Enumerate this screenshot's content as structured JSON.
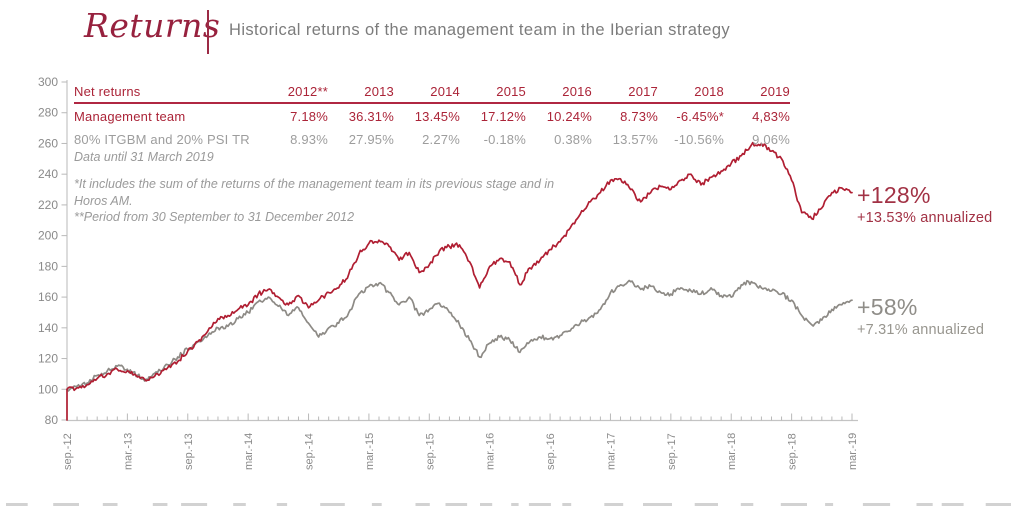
{
  "header": {
    "title": "Returns",
    "subtitle": "Historical returns of the management team in the Iberian strategy"
  },
  "table": {
    "header_label": "Net returns",
    "years": [
      "2012**",
      "2013",
      "2014",
      "2015",
      "2016",
      "2017",
      "2018",
      "2019"
    ],
    "rows": [
      {
        "label": "Management team",
        "values": [
          "7.18%",
          "36.31%",
          "13.45%",
          "17.12%",
          "10.24%",
          "8.73%",
          "-6.45%*",
          "4,83%"
        ]
      },
      {
        "label": "80% ITGBM and 20% PSI TR",
        "values": [
          "8.93%",
          "27.95%",
          "2.27%",
          "-0.18%",
          "0.38%",
          "13.57%",
          "-10.56%",
          "9,06%"
        ]
      }
    ]
  },
  "notes": {
    "data_until": "Data until 31 March 2019",
    "asterisk": "*It includes the sum of the returns of the management team in its previous stage and in Horos AM.",
    "double_asterisk": "**Period from 30 September to 31 December 2012"
  },
  "annotations": {
    "team": {
      "total": "+128%",
      "annualized": "+13.53% annualized"
    },
    "benchmark": {
      "total": "+58%",
      "annualized": "+7.31% annualized"
    }
  },
  "colors": {
    "brand_maroon": "#97213e",
    "table_red": "#ab2438",
    "line_red": "#b01e32",
    "line_gray": "#8d8a85",
    "axis_gray": "#c4c4c4",
    "tick_gray": "#b9b9b9",
    "label_gray": "#8a8a8a"
  },
  "chart_data": {
    "type": "line",
    "title": "Historical returns of the management team in the Iberian strategy",
    "x_unit": "months since Sep 2012",
    "x_months": 78,
    "x_ticklabels": [
      "sep.-12",
      "mar.-13",
      "sep.-13",
      "mar.-14",
      "sep.-14",
      "mar.-15",
      "sep.-15",
      "mar.-16",
      "sep.-16",
      "mar.-17",
      "sep.-17",
      "mar.-18",
      "sep.-18",
      "mar.-19"
    ],
    "yticks": [
      300,
      280,
      260,
      240,
      220,
      200,
      180,
      160,
      140,
      120,
      100,
      80
    ],
    "ylim": [
      80,
      300
    ],
    "base_value": 100,
    "grid": false,
    "legend_position": "none",
    "series": [
      {
        "name": "80% ITGBM and 20% PSI TR",
        "color": "#8d8a85",
        "final_total_return": "+58%",
        "final_annualized": "+7.31% annualized",
        "monthly_values": [
          100,
          102,
          104,
          109,
          112,
          115,
          113,
          109,
          106,
          111,
          116,
          121,
          126,
          131,
          135,
          140,
          141,
          146,
          150,
          157,
          160,
          154,
          148,
          153,
          143,
          134,
          140,
          143,
          150,
          162,
          167,
          169,
          163,
          155,
          160,
          148,
          152,
          156,
          150,
          142,
          132,
          121,
          130,
          134,
          132,
          124,
          131,
          134,
          133,
          135,
          138,
          143,
          147,
          152,
          163,
          168,
          170,
          165,
          167,
          163,
          162,
          166,
          164,
          162,
          166,
          161,
          160,
          168,
          170,
          166,
          164,
          162,
          158,
          148,
          142,
          145,
          152,
          155,
          158
        ]
      },
      {
        "name": "Management team",
        "color": "#b01e32",
        "starts_at_baseline": true,
        "final_total_return": "+128%",
        "final_annualized": "+13.53% annualized",
        "monthly_values": [
          100,
          101,
          103,
          107,
          110,
          113,
          112,
          108,
          106,
          110,
          114,
          118,
          125,
          131,
          138,
          146,
          148,
          152,
          155,
          162,
          165,
          160,
          155,
          161,
          153,
          158,
          163,
          166,
          175,
          188,
          195,
          197,
          193,
          184,
          189,
          176,
          181,
          190,
          193,
          194,
          183,
          166,
          180,
          185,
          183,
          168,
          179,
          184,
          191,
          196,
          205,
          214,
          222,
          228,
          236,
          237,
          230,
          222,
          228,
          232,
          230,
          236,
          240,
          233,
          238,
          242,
          247,
          252,
          259,
          260,
          255,
          250,
          236,
          215,
          211,
          218,
          228,
          231,
          228
        ]
      }
    ]
  }
}
